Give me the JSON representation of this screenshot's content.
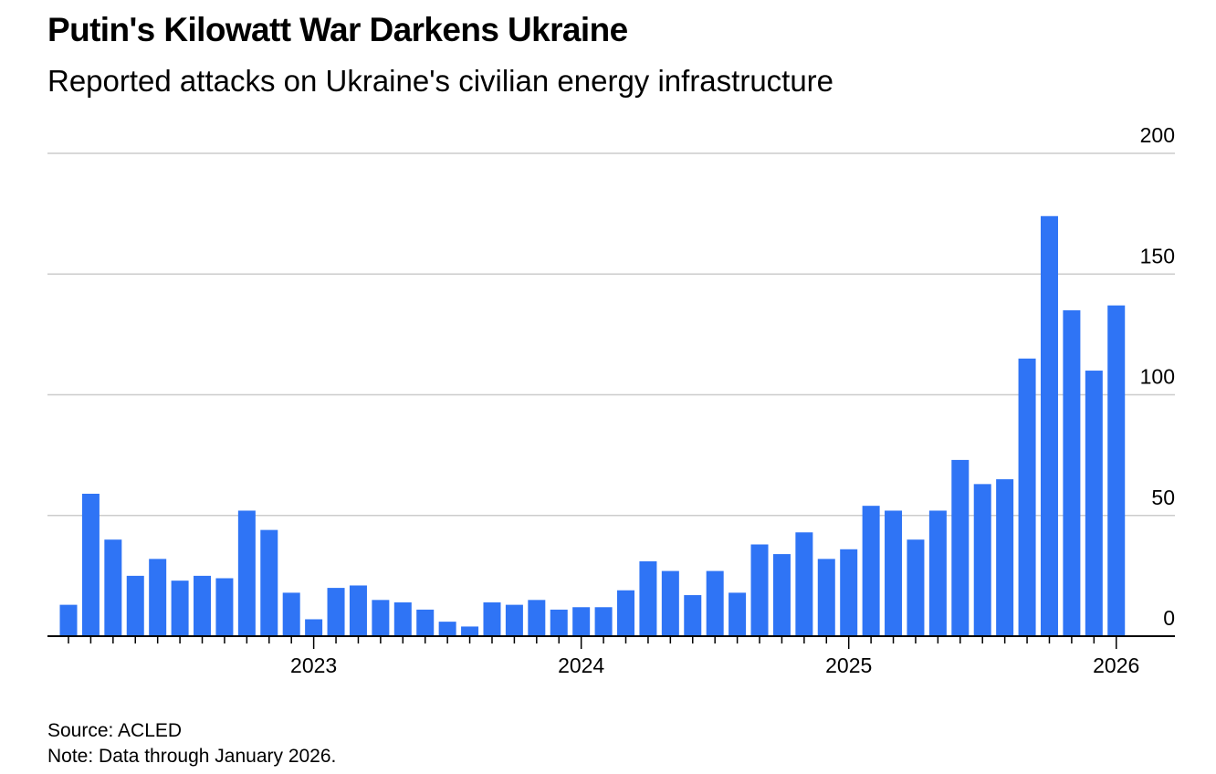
{
  "title": "Putin's Kilowatt War Darkens Ukraine",
  "subtitle": "Reported attacks on Ukraine's civilian energy infrastructure",
  "source": "Source: ACLED",
  "note": "Note: Data through January 2026.",
  "colors": {
    "bar": "#2f74f5",
    "grid": "#cccccc",
    "axis": "#000000"
  },
  "chart_data": {
    "type": "bar",
    "title": "Putin's Kilowatt War Darkens Ukraine",
    "subtitle": "Reported attacks on Ukraine's civilian energy infrastructure",
    "xlabel": "",
    "ylabel": "",
    "ylim": [
      0,
      200
    ],
    "yticks": [
      0,
      50,
      100,
      150,
      200
    ],
    "y_axis_side": "right",
    "grid": true,
    "x_period_start": "2022-02",
    "x_period_end": "2026-01",
    "xtick_labels": [
      "2023",
      "2024",
      "2025",
      "2026"
    ],
    "xtick_dates": [
      "2023-01",
      "2024-01",
      "2025-01",
      "2026-01"
    ],
    "categories": [
      "2022-02",
      "2022-03",
      "2022-04",
      "2022-05",
      "2022-06",
      "2022-07",
      "2022-08",
      "2022-09",
      "2022-10",
      "2022-11",
      "2022-12",
      "2023-01",
      "2023-02",
      "2023-03",
      "2023-04",
      "2023-05",
      "2023-06",
      "2023-07",
      "2023-08",
      "2023-09",
      "2023-10",
      "2023-11",
      "2023-12",
      "2024-01",
      "2024-02",
      "2024-03",
      "2024-04",
      "2024-05",
      "2024-06",
      "2024-07",
      "2024-08",
      "2024-09",
      "2024-10",
      "2024-11",
      "2024-12",
      "2025-01",
      "2025-02",
      "2025-03",
      "2025-04",
      "2025-05",
      "2025-06",
      "2025-07",
      "2025-08",
      "2025-09",
      "2025-10",
      "2025-11",
      "2025-12",
      "2026-01"
    ],
    "values": [
      13,
      59,
      40,
      25,
      32,
      23,
      25,
      24,
      52,
      44,
      18,
      7,
      20,
      21,
      15,
      14,
      11,
      6,
      4,
      14,
      13,
      15,
      11,
      12,
      12,
      19,
      31,
      27,
      17,
      27,
      18,
      38,
      34,
      43,
      32,
      36,
      54,
      52,
      40,
      52,
      73,
      63,
      65,
      115,
      174,
      135,
      110,
      137
    ]
  }
}
